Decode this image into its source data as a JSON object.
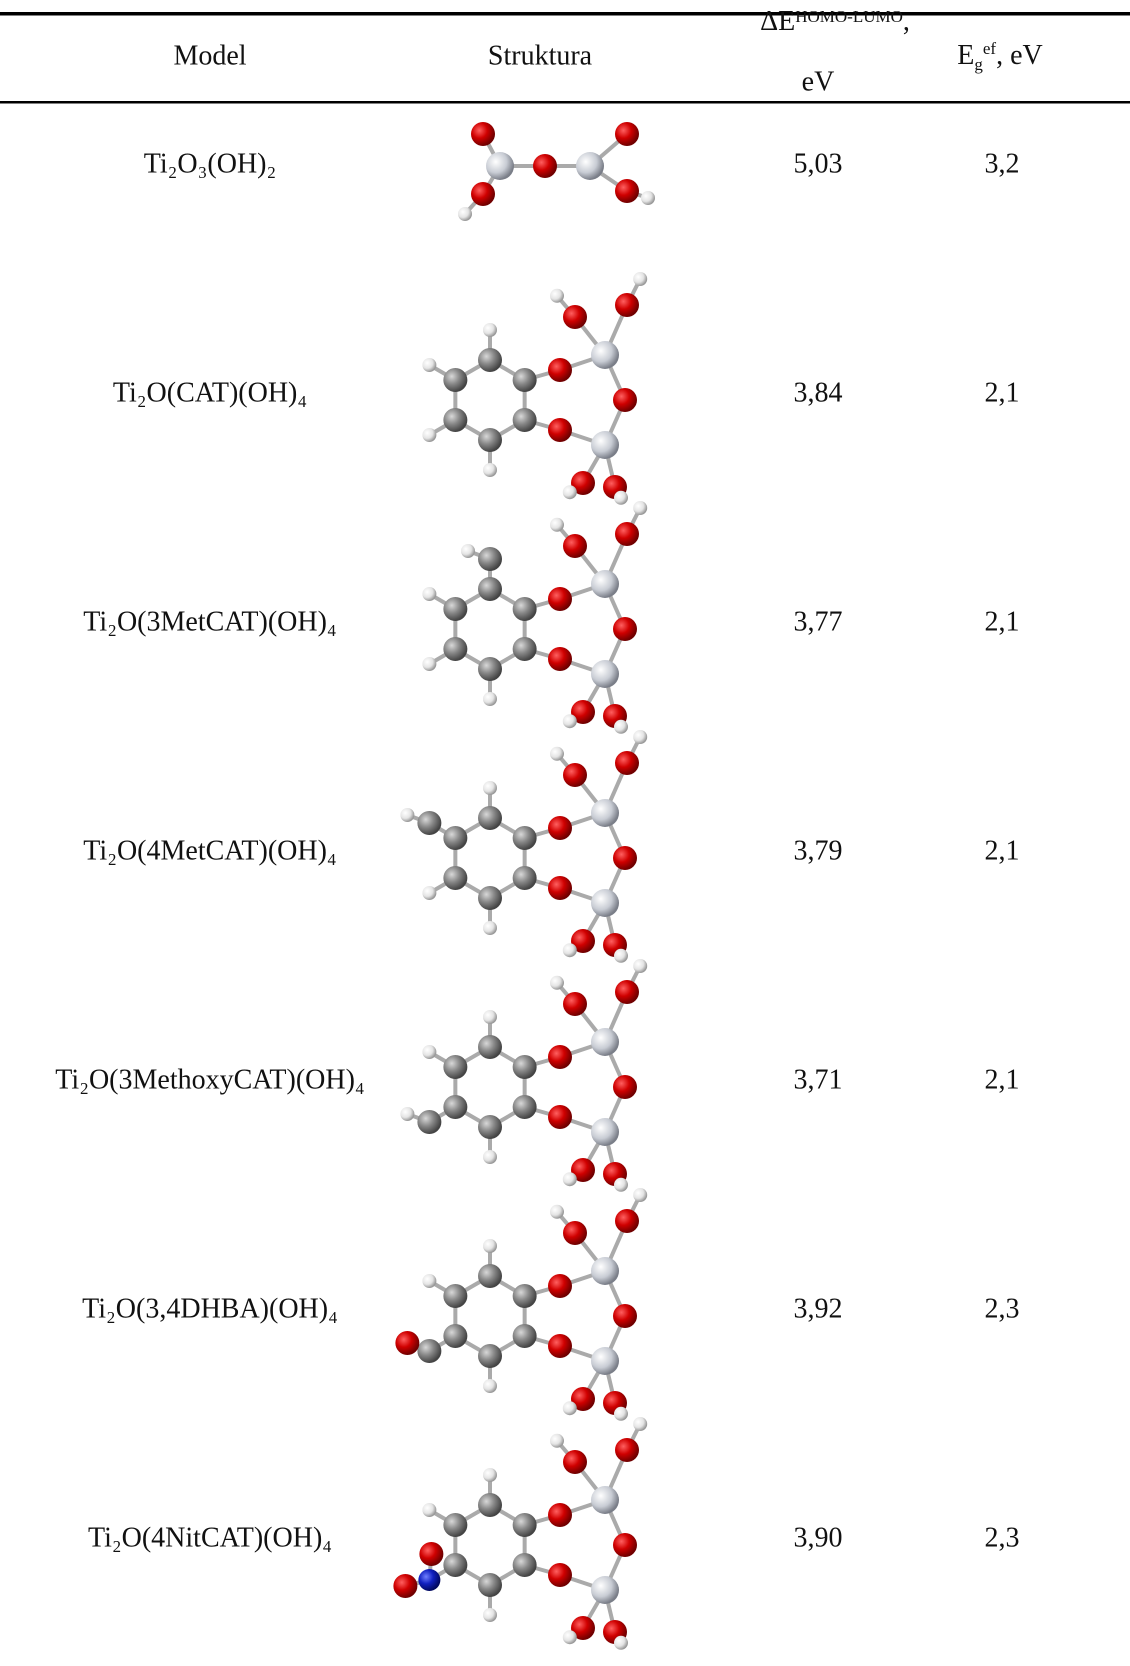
{
  "table": {
    "header": {
      "model": "Model",
      "structure": "Struktura",
      "gap": {
        "main": "ΔE",
        "sup": "HOMO-LUMO",
        "tail": ",",
        "line2": "eV"
      },
      "eg": {
        "main": "E",
        "sub": "g",
        "sup": "ef",
        "tail": ", eV"
      }
    },
    "rows": [
      [
        "Ti₂O₃(OH)₂",
        "5,03",
        "3,2"
      ],
      [
        "Ti₂O(CAT)(OH)₄",
        "3,84",
        "2,1"
      ],
      [
        "Ti₂O(3MetCAT)(OH)₄",
        "3,77",
        "2,1"
      ],
      [
        "Ti₂O(4MetCAT)(OH)₄",
        "3,79",
        "2,1"
      ],
      [
        "Ti₂O(3MethoxyCAT)(OH)₄",
        "3,71",
        "2,1"
      ],
      [
        "Ti₂O(3,4DHBA)(OH)₄",
        "3,92",
        "2,3"
      ],
      [
        "Ti₂O(4NitCAT)(OH)₄",
        "3,90",
        "2,3"
      ]
    ]
  }
}
